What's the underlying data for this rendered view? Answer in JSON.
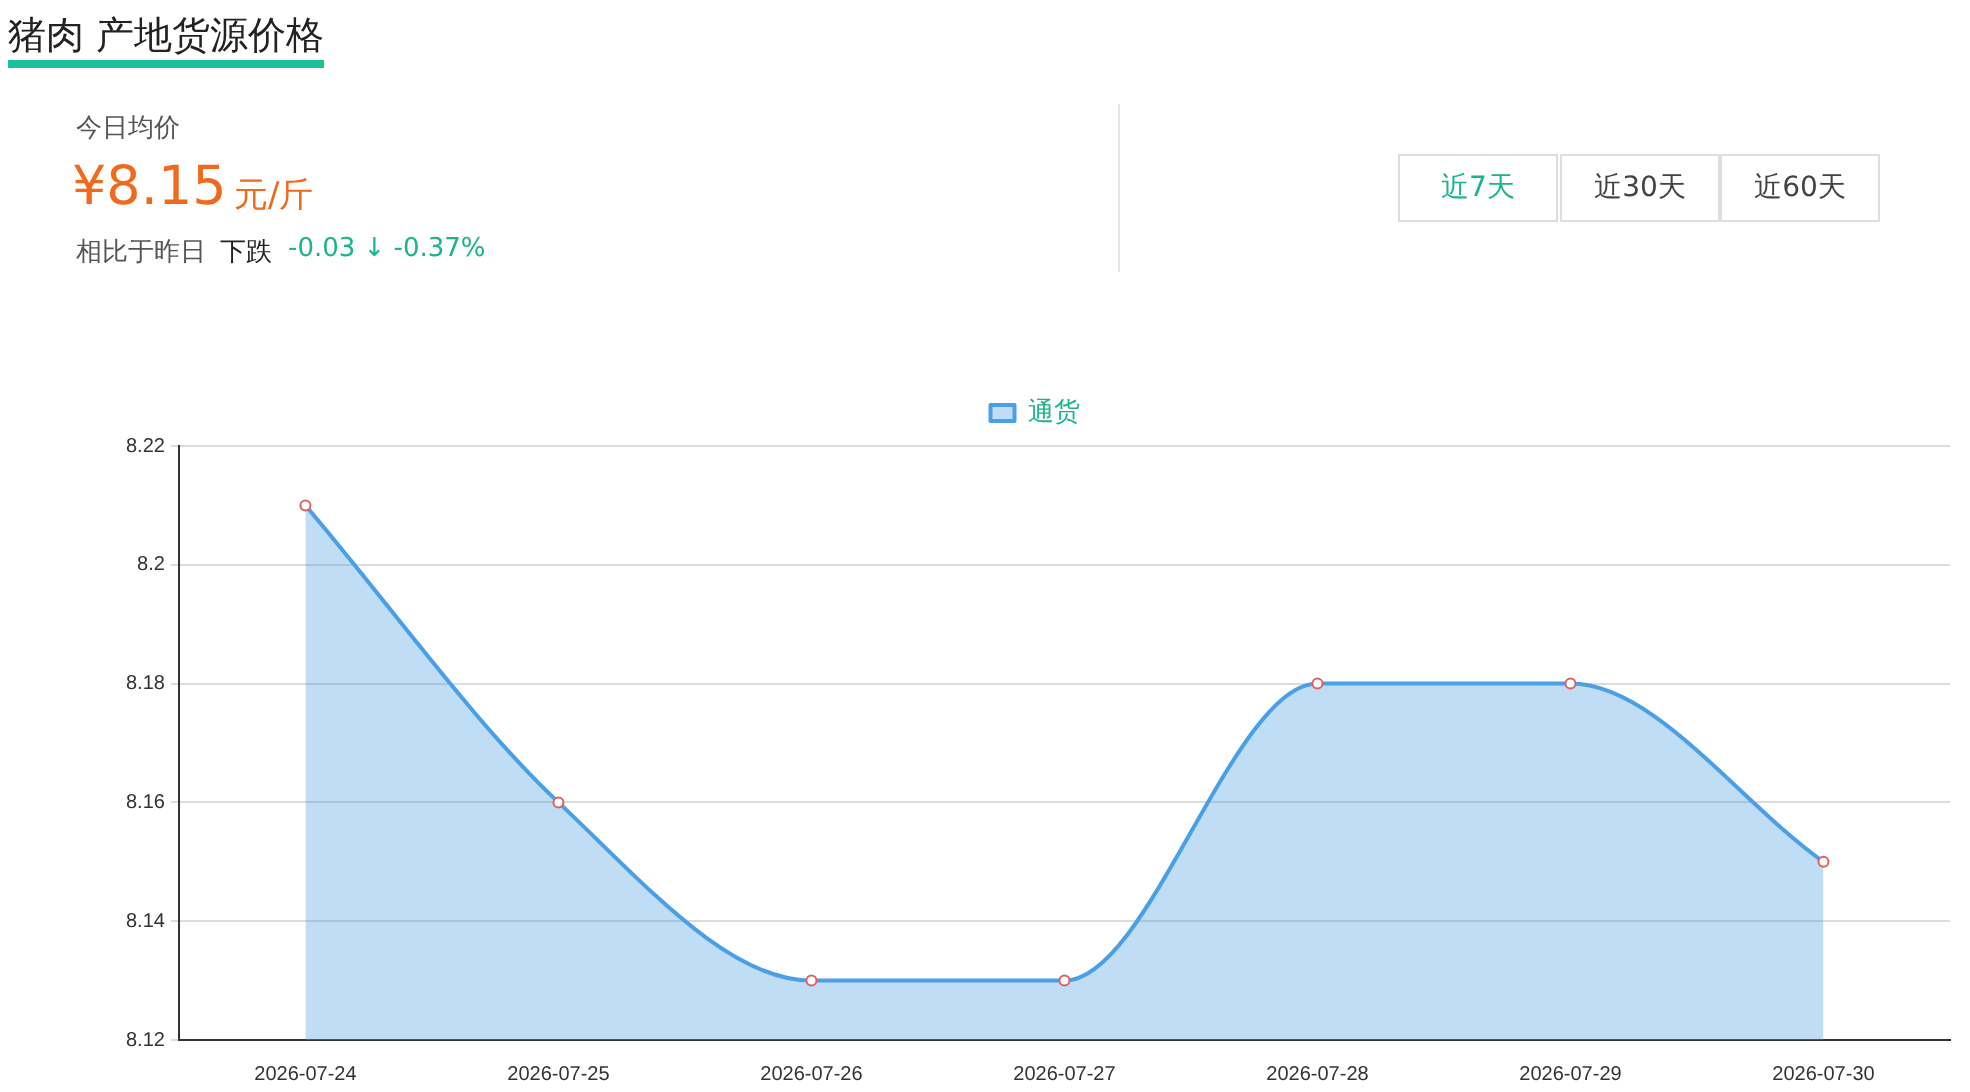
{
  "chart_data": {
    "type": "area",
    "title": "猪肉 产地货源价格",
    "annotations": [
      "今日均价",
      "¥8.15",
      "元/斤",
      "相比于昨日",
      "下跌",
      "-0.03 ↓ -0.37%",
      "近7天",
      "近30天",
      "近60天"
    ],
    "categories": [
      "2026-07-24",
      "2026-07-25",
      "2026-07-26",
      "2026-07-27",
      "2026-07-28",
      "2026-07-29",
      "2026-07-30"
    ],
    "series": [
      {
        "name": "通货",
        "color": "#4a9fe6",
        "values": [
          8.21,
          8.16,
          8.13,
          8.13,
          8.18,
          8.18,
          8.15
        ]
      }
    ],
    "ylim": [
      8.12,
      8.22
    ],
    "yticks": [
      8.12,
      8.14,
      8.16,
      8.18,
      8.2,
      8.22
    ],
    "grid": "y",
    "legend": "top",
    "marker": "circle",
    "line_style": "solid"
  }
}
